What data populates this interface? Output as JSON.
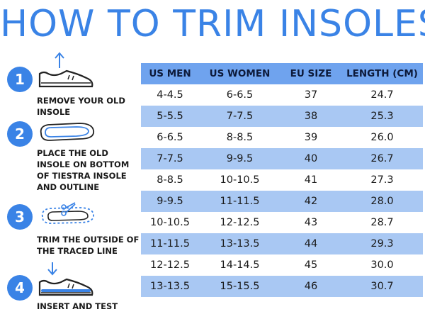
{
  "title": "HOW TO TRIM INSOLES",
  "colors": {
    "accent": "#3a83e6",
    "header": "#6fa3ee",
    "shade": "#a9c8f3"
  },
  "steps": [
    {
      "number": "1",
      "icon": "shoe-remove-insole-icon",
      "text": "REMOVE YOUR OLD INSOLE"
    },
    {
      "number": "2",
      "icon": "insole-outline-icon",
      "text": "PLACE THE OLD INSOLE ON BOTTOM OF TIESTRA INSOLE AND OUTLINE"
    },
    {
      "number": "3",
      "icon": "scissors-trim-icon",
      "text": "TRIM THE OUTSIDE OF THE TRACED LINE"
    },
    {
      "number": "4",
      "icon": "shoe-insert-insole-icon",
      "text": "INSERT AND TEST"
    }
  ],
  "table": {
    "headers": [
      "US MEN",
      "US WOMEN",
      "EU SIZE",
      "LENGTH (CM)"
    ],
    "rows": [
      [
        "4-4.5",
        "6-6.5",
        "37",
        "24.7"
      ],
      [
        "5-5.5",
        "7-7.5",
        "38",
        "25.3"
      ],
      [
        "6-6.5",
        "8-8.5",
        "39",
        "26.0"
      ],
      [
        "7-7.5",
        "9-9.5",
        "40",
        "26.7"
      ],
      [
        "8-8.5",
        "10-10.5",
        "41",
        "27.3"
      ],
      [
        "9-9.5",
        "11-11.5",
        "42",
        "28.0"
      ],
      [
        "10-10.5",
        "12-12.5",
        "43",
        "28.7"
      ],
      [
        "11-11.5",
        "13-13.5",
        "44",
        "29.3"
      ],
      [
        "12-12.5",
        "14-14.5",
        "45",
        "30.0"
      ],
      [
        "13-13.5",
        "15-15.5",
        "46",
        "30.7"
      ]
    ]
  }
}
